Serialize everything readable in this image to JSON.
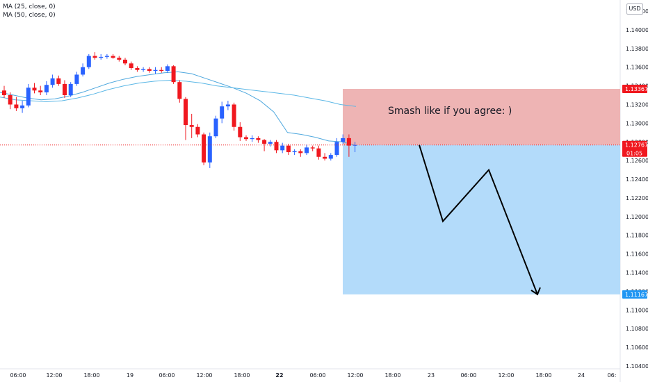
{
  "legend": [
    {
      "label": "MA (25, close, 0)",
      "color": "#2962ff"
    },
    {
      "label": "MA (50, close, 0)",
      "color": "#42a5d5"
    }
  ],
  "currency": "USD",
  "colors": {
    "up": "#2962ff",
    "down": "#f0181f",
    "ma25": "#4fa8de",
    "ma50": "#5bb7e6",
    "risk_zone": "#eeb4b4",
    "reward_zone": "#b3dbfa",
    "axis_text": "#131722",
    "marker_red": "#f0181f",
    "marker_blue": "#2196f3"
  },
  "annotation": "Smash like if you agree: )",
  "chart_data": {
    "type": "candlestick",
    "y_ticks": [
      1.142,
      1.14,
      1.138,
      1.136,
      1.134,
      1.132,
      1.13,
      1.128,
      1.126,
      1.124,
      1.122,
      1.12,
      1.118,
      1.116,
      1.114,
      1.112,
      1.11,
      1.108,
      1.106,
      1.104
    ],
    "y_tick_labels": [
      "1.14200",
      "1.14000",
      "1.13800",
      "1.13600",
      "1.13400",
      "1.13200",
      "1.13000",
      "1.12800",
      "1.12600",
      "1.12400",
      "1.12200",
      "1.12000",
      "1.11800",
      "1.11600",
      "1.11400",
      "1.11200",
      "1.11000",
      "1.10800",
      "1.10600",
      "1.10400"
    ],
    "x_ticks": [
      "06:00",
      "12:00",
      "18:00",
      "19",
      "06:00",
      "12:00",
      "18:00",
      "22",
      "06:00",
      "12:00",
      "18:00",
      "23",
      "06:00",
      "12:00",
      "18:00",
      "24",
      "06:"
    ],
    "bold_x_ticks": [
      "22"
    ],
    "candles": [
      {
        "o": 1.1335,
        "h": 1.134,
        "l": 1.1327,
        "c": 1.133
      },
      {
        "o": 1.133,
        "h": 1.1333,
        "l": 1.1315,
        "c": 1.132
      },
      {
        "o": 1.132,
        "h": 1.1328,
        "l": 1.1313,
        "c": 1.1316
      },
      {
        "o": 1.1316,
        "h": 1.1324,
        "l": 1.1311,
        "c": 1.1319
      },
      {
        "o": 1.1319,
        "h": 1.1342,
        "l": 1.1317,
        "c": 1.1338
      },
      {
        "o": 1.1338,
        "h": 1.1343,
        "l": 1.1332,
        "c": 1.1335
      },
      {
        "o": 1.1335,
        "h": 1.134,
        "l": 1.133,
        "c": 1.1333
      },
      {
        "o": 1.1333,
        "h": 1.1345,
        "l": 1.133,
        "c": 1.1341
      },
      {
        "o": 1.1341,
        "h": 1.1352,
        "l": 1.1338,
        "c": 1.1348
      },
      {
        "o": 1.1348,
        "h": 1.1351,
        "l": 1.134,
        "c": 1.1342
      },
      {
        "o": 1.1342,
        "h": 1.1346,
        "l": 1.1327,
        "c": 1.133
      },
      {
        "o": 1.133,
        "h": 1.1344,
        "l": 1.1328,
        "c": 1.1342
      },
      {
        "o": 1.1342,
        "h": 1.1355,
        "l": 1.134,
        "c": 1.1352
      },
      {
        "o": 1.1352,
        "h": 1.1364,
        "l": 1.135,
        "c": 1.136
      },
      {
        "o": 1.136,
        "h": 1.1374,
        "l": 1.1358,
        "c": 1.1372
      },
      {
        "o": 1.1372,
        "h": 1.1376,
        "l": 1.1368,
        "c": 1.137
      },
      {
        "o": 1.137,
        "h": 1.1374,
        "l": 1.1368,
        "c": 1.1371
      },
      {
        "o": 1.1371,
        "h": 1.1374,
        "l": 1.1369,
        "c": 1.1372
      },
      {
        "o": 1.1372,
        "h": 1.1374,
        "l": 1.1369,
        "c": 1.137
      },
      {
        "o": 1.137,
        "h": 1.1372,
        "l": 1.1366,
        "c": 1.1368
      },
      {
        "o": 1.1368,
        "h": 1.137,
        "l": 1.1362,
        "c": 1.1364
      },
      {
        "o": 1.1364,
        "h": 1.1366,
        "l": 1.1357,
        "c": 1.1359
      },
      {
        "o": 1.1359,
        "h": 1.1361,
        "l": 1.1355,
        "c": 1.1357
      },
      {
        "o": 1.1357,
        "h": 1.136,
        "l": 1.1355,
        "c": 1.1358
      },
      {
        "o": 1.1358,
        "h": 1.136,
        "l": 1.1354,
        "c": 1.1356
      },
      {
        "o": 1.1356,
        "h": 1.136,
        "l": 1.1353,
        "c": 1.1357
      },
      {
        "o": 1.1357,
        "h": 1.136,
        "l": 1.1354,
        "c": 1.1356
      },
      {
        "o": 1.1356,
        "h": 1.1363,
        "l": 1.1354,
        "c": 1.1361
      },
      {
        "o": 1.1361,
        "h": 1.1362,
        "l": 1.1342,
        "c": 1.1344
      },
      {
        "o": 1.1344,
        "h": 1.1346,
        "l": 1.1322,
        "c": 1.1326
      },
      {
        "o": 1.1326,
        "h": 1.1328,
        "l": 1.1282,
        "c": 1.1298
      },
      {
        "o": 1.1298,
        "h": 1.131,
        "l": 1.1284,
        "c": 1.1296
      },
      {
        "o": 1.1296,
        "h": 1.1299,
        "l": 1.1285,
        "c": 1.1288
      },
      {
        "o": 1.1288,
        "h": 1.129,
        "l": 1.1255,
        "c": 1.1258
      },
      {
        "o": 1.1258,
        "h": 1.129,
        "l": 1.1252,
        "c": 1.1286
      },
      {
        "o": 1.1286,
        "h": 1.1308,
        "l": 1.1284,
        "c": 1.1305
      },
      {
        "o": 1.1305,
        "h": 1.1323,
        "l": 1.13,
        "c": 1.1318
      },
      {
        "o": 1.1318,
        "h": 1.1324,
        "l": 1.1314,
        "c": 1.132
      },
      {
        "o": 1.132,
        "h": 1.1322,
        "l": 1.1292,
        "c": 1.1296
      },
      {
        "o": 1.1296,
        "h": 1.1301,
        "l": 1.1281,
        "c": 1.1285
      },
      {
        "o": 1.1285,
        "h": 1.1287,
        "l": 1.1281,
        "c": 1.1283
      },
      {
        "o": 1.1283,
        "h": 1.1287,
        "l": 1.128,
        "c": 1.1284
      },
      {
        "o": 1.1284,
        "h": 1.1286,
        "l": 1.1279,
        "c": 1.1282
      },
      {
        "o": 1.1282,
        "h": 1.1283,
        "l": 1.127,
        "c": 1.1278
      },
      {
        "o": 1.1278,
        "h": 1.1282,
        "l": 1.1275,
        "c": 1.128
      },
      {
        "o": 1.128,
        "h": 1.1282,
        "l": 1.1268,
        "c": 1.1271
      },
      {
        "o": 1.1271,
        "h": 1.1279,
        "l": 1.1268,
        "c": 1.1276
      },
      {
        "o": 1.1276,
        "h": 1.1278,
        "l": 1.1266,
        "c": 1.1269
      },
      {
        "o": 1.1269,
        "h": 1.1272,
        "l": 1.1266,
        "c": 1.127
      },
      {
        "o": 1.127,
        "h": 1.1272,
        "l": 1.1264,
        "c": 1.1268
      },
      {
        "o": 1.1268,
        "h": 1.1277,
        "l": 1.1266,
        "c": 1.1274
      },
      {
        "o": 1.1274,
        "h": 1.1276,
        "l": 1.127,
        "c": 1.1273
      },
      {
        "o": 1.1273,
        "h": 1.1276,
        "l": 1.1261,
        "c": 1.1264
      },
      {
        "o": 1.1264,
        "h": 1.1268,
        "l": 1.126,
        "c": 1.1262
      },
      {
        "o": 1.1262,
        "h": 1.1268,
        "l": 1.126,
        "c": 1.1266
      },
      {
        "o": 1.1266,
        "h": 1.1284,
        "l": 1.1264,
        "c": 1.128
      },
      {
        "o": 1.128,
        "h": 1.1288,
        "l": 1.1278,
        "c": 1.1284
      },
      {
        "o": 1.1284,
        "h": 1.1288,
        "l": 1.1264,
        "c": 1.1276
      },
      {
        "o": 1.1276,
        "h": 1.128,
        "l": 1.1269,
        "c": 1.12767
      }
    ],
    "ma25": [
      1.1333,
      1.133,
      1.1327,
      1.1325,
      1.1326,
      1.1329,
      1.1333,
      1.1338,
      1.1343,
      1.1347,
      1.135,
      1.1352,
      1.1354,
      1.1355,
      1.1353,
      1.1348,
      1.1343,
      1.1338,
      1.1332,
      1.1324,
      1.1312,
      1.129,
      1.1288,
      1.1285,
      1.1281,
      1.128,
      1.1276
    ],
    "ma50": [
      1.1328,
      1.1325,
      1.1324,
      1.1323,
      1.1324,
      1.1327,
      1.1331,
      1.1336,
      1.134,
      1.1343,
      1.1345,
      1.1346,
      1.1345,
      1.1343,
      1.134,
      1.1338,
      1.1336,
      1.1334,
      1.1332,
      1.133,
      1.1327,
      1.1324,
      1.132,
      1.1318
    ],
    "last_price": 1.12767,
    "last_price_label": "1.12767",
    "countdown": "01:05",
    "risk_zone": {
      "top": 1.13367,
      "bottom": 1.12767,
      "label": "1.13367"
    },
    "reward_zone": {
      "top": 1.12767,
      "bottom": 1.11167,
      "label": "1.11167"
    },
    "projection_path": [
      1.12767,
      1.1195,
      1.125,
      1.11167
    ]
  }
}
